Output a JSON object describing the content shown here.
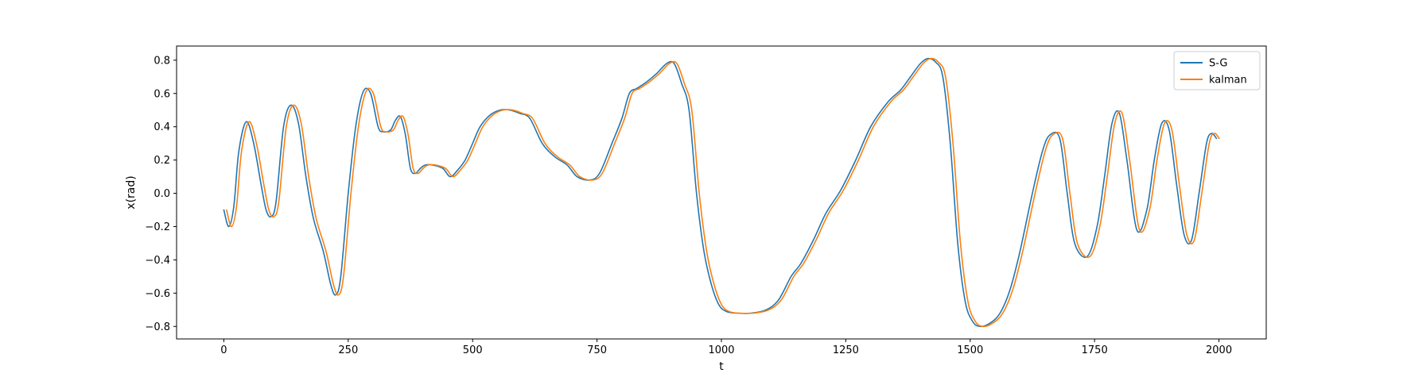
{
  "chart_data": {
    "type": "line",
    "xlabel": "t",
    "ylabel": "x(rad)",
    "xlim": [
      -95,
      2095
    ],
    "ylim": [
      -0.875,
      0.885
    ],
    "xticks": [
      0,
      250,
      500,
      750,
      1000,
      1250,
      1500,
      1750,
      2000
    ],
    "xtick_labels": [
      "0",
      "250",
      "500",
      "750",
      "1000",
      "1250",
      "1500",
      "1750",
      "2000"
    ],
    "yticks": [
      -0.8,
      -0.6,
      -0.4,
      -0.2,
      0.0,
      0.2,
      0.4,
      0.6,
      0.8
    ],
    "ytick_labels": [
      "−0.8",
      "−0.6",
      "−0.4",
      "−0.2",
      "0.0",
      "0.2",
      "0.4",
      "0.6",
      "0.8"
    ],
    "grid": false,
    "legend_position": "top-right",
    "x": [
      0,
      10,
      20,
      30,
      45,
      60,
      75,
      85,
      95,
      105,
      120,
      135,
      150,
      165,
      180,
      200,
      215,
      225,
      235,
      250,
      265,
      280,
      295,
      310,
      320,
      335,
      345,
      355,
      365,
      375,
      385,
      395,
      405,
      420,
      440,
      455,
      470,
      485,
      500,
      515,
      535,
      555,
      575,
      595,
      615,
      640,
      665,
      690,
      710,
      735,
      755,
      780,
      800,
      815,
      830,
      850,
      870,
      890,
      905,
      920,
      935,
      950,
      965,
      980,
      995,
      1010,
      1030,
      1060,
      1090,
      1115,
      1140,
      1160,
      1185,
      1210,
      1240,
      1270,
      1300,
      1335,
      1360,
      1380,
      1400,
      1415,
      1430,
      1445,
      1460,
      1475,
      1490,
      1505,
      1520,
      1540,
      1560,
      1580,
      1600,
      1625,
      1645,
      1660,
      1680,
      1695,
      1710,
      1735,
      1755,
      1770,
      1785,
      1800,
      1815,
      1835,
      1855,
      1870,
      1885,
      1900,
      1915,
      1930,
      1945,
      1960,
      1975,
      1985,
      1995
    ],
    "series": [
      {
        "name": "S-G",
        "color": "#1f77b4",
        "values": [
          -0.1,
          -0.2,
          -0.08,
          0.25,
          0.43,
          0.3,
          0.05,
          -0.1,
          -0.14,
          -0.05,
          0.4,
          0.53,
          0.42,
          0.1,
          -0.15,
          -0.35,
          -0.55,
          -0.61,
          -0.5,
          0.0,
          0.4,
          0.61,
          0.6,
          0.4,
          0.37,
          0.38,
          0.44,
          0.46,
          0.35,
          0.15,
          0.12,
          0.15,
          0.17,
          0.17,
          0.15,
          0.1,
          0.14,
          0.2,
          0.3,
          0.4,
          0.47,
          0.5,
          0.5,
          0.48,
          0.45,
          0.3,
          0.22,
          0.17,
          0.1,
          0.08,
          0.12,
          0.3,
          0.45,
          0.6,
          0.63,
          0.67,
          0.72,
          0.78,
          0.78,
          0.66,
          0.5,
          0.0,
          -0.35,
          -0.55,
          -0.67,
          -0.71,
          -0.72,
          -0.72,
          -0.7,
          -0.64,
          -0.5,
          -0.42,
          -0.28,
          -0.12,
          0.02,
          0.2,
          0.4,
          0.55,
          0.62,
          0.7,
          0.78,
          0.81,
          0.79,
          0.7,
          0.3,
          -0.3,
          -0.65,
          -0.77,
          -0.8,
          -0.78,
          -0.72,
          -0.58,
          -0.35,
          0.0,
          0.25,
          0.35,
          0.33,
          0.0,
          -0.3,
          -0.38,
          -0.2,
          0.1,
          0.42,
          0.48,
          0.2,
          -0.22,
          -0.1,
          0.2,
          0.42,
          0.38,
          0.05,
          -0.25,
          -0.28,
          0.0,
          0.3,
          0.36,
          0.33
        ]
      },
      {
        "name": "kalman",
        "color": "#ff7f0e",
        "values": [
          -0.1,
          -0.2,
          -0.08,
          0.25,
          0.43,
          0.3,
          0.05,
          -0.1,
          -0.14,
          -0.05,
          0.4,
          0.53,
          0.42,
          0.1,
          -0.15,
          -0.35,
          -0.55,
          -0.61,
          -0.5,
          0.0,
          0.4,
          0.61,
          0.6,
          0.4,
          0.37,
          0.38,
          0.44,
          0.46,
          0.35,
          0.15,
          0.12,
          0.15,
          0.17,
          0.17,
          0.15,
          0.1,
          0.14,
          0.2,
          0.3,
          0.4,
          0.47,
          0.5,
          0.5,
          0.48,
          0.45,
          0.3,
          0.22,
          0.17,
          0.1,
          0.08,
          0.12,
          0.3,
          0.45,
          0.6,
          0.63,
          0.67,
          0.72,
          0.78,
          0.78,
          0.66,
          0.5,
          0.0,
          -0.35,
          -0.55,
          -0.67,
          -0.71,
          -0.72,
          -0.72,
          -0.7,
          -0.64,
          -0.5,
          -0.42,
          -0.28,
          -0.12,
          0.02,
          0.2,
          0.4,
          0.55,
          0.62,
          0.7,
          0.78,
          0.81,
          0.79,
          0.7,
          0.3,
          -0.3,
          -0.65,
          -0.77,
          -0.8,
          -0.78,
          -0.72,
          -0.58,
          -0.35,
          0.0,
          0.25,
          0.35,
          0.33,
          0.0,
          -0.3,
          -0.38,
          -0.2,
          0.1,
          0.42,
          0.48,
          0.2,
          -0.22,
          -0.1,
          0.2,
          0.42,
          0.38,
          0.05,
          -0.25,
          -0.28,
          0.0,
          0.3,
          0.36,
          0.33
        ]
      }
    ]
  }
}
